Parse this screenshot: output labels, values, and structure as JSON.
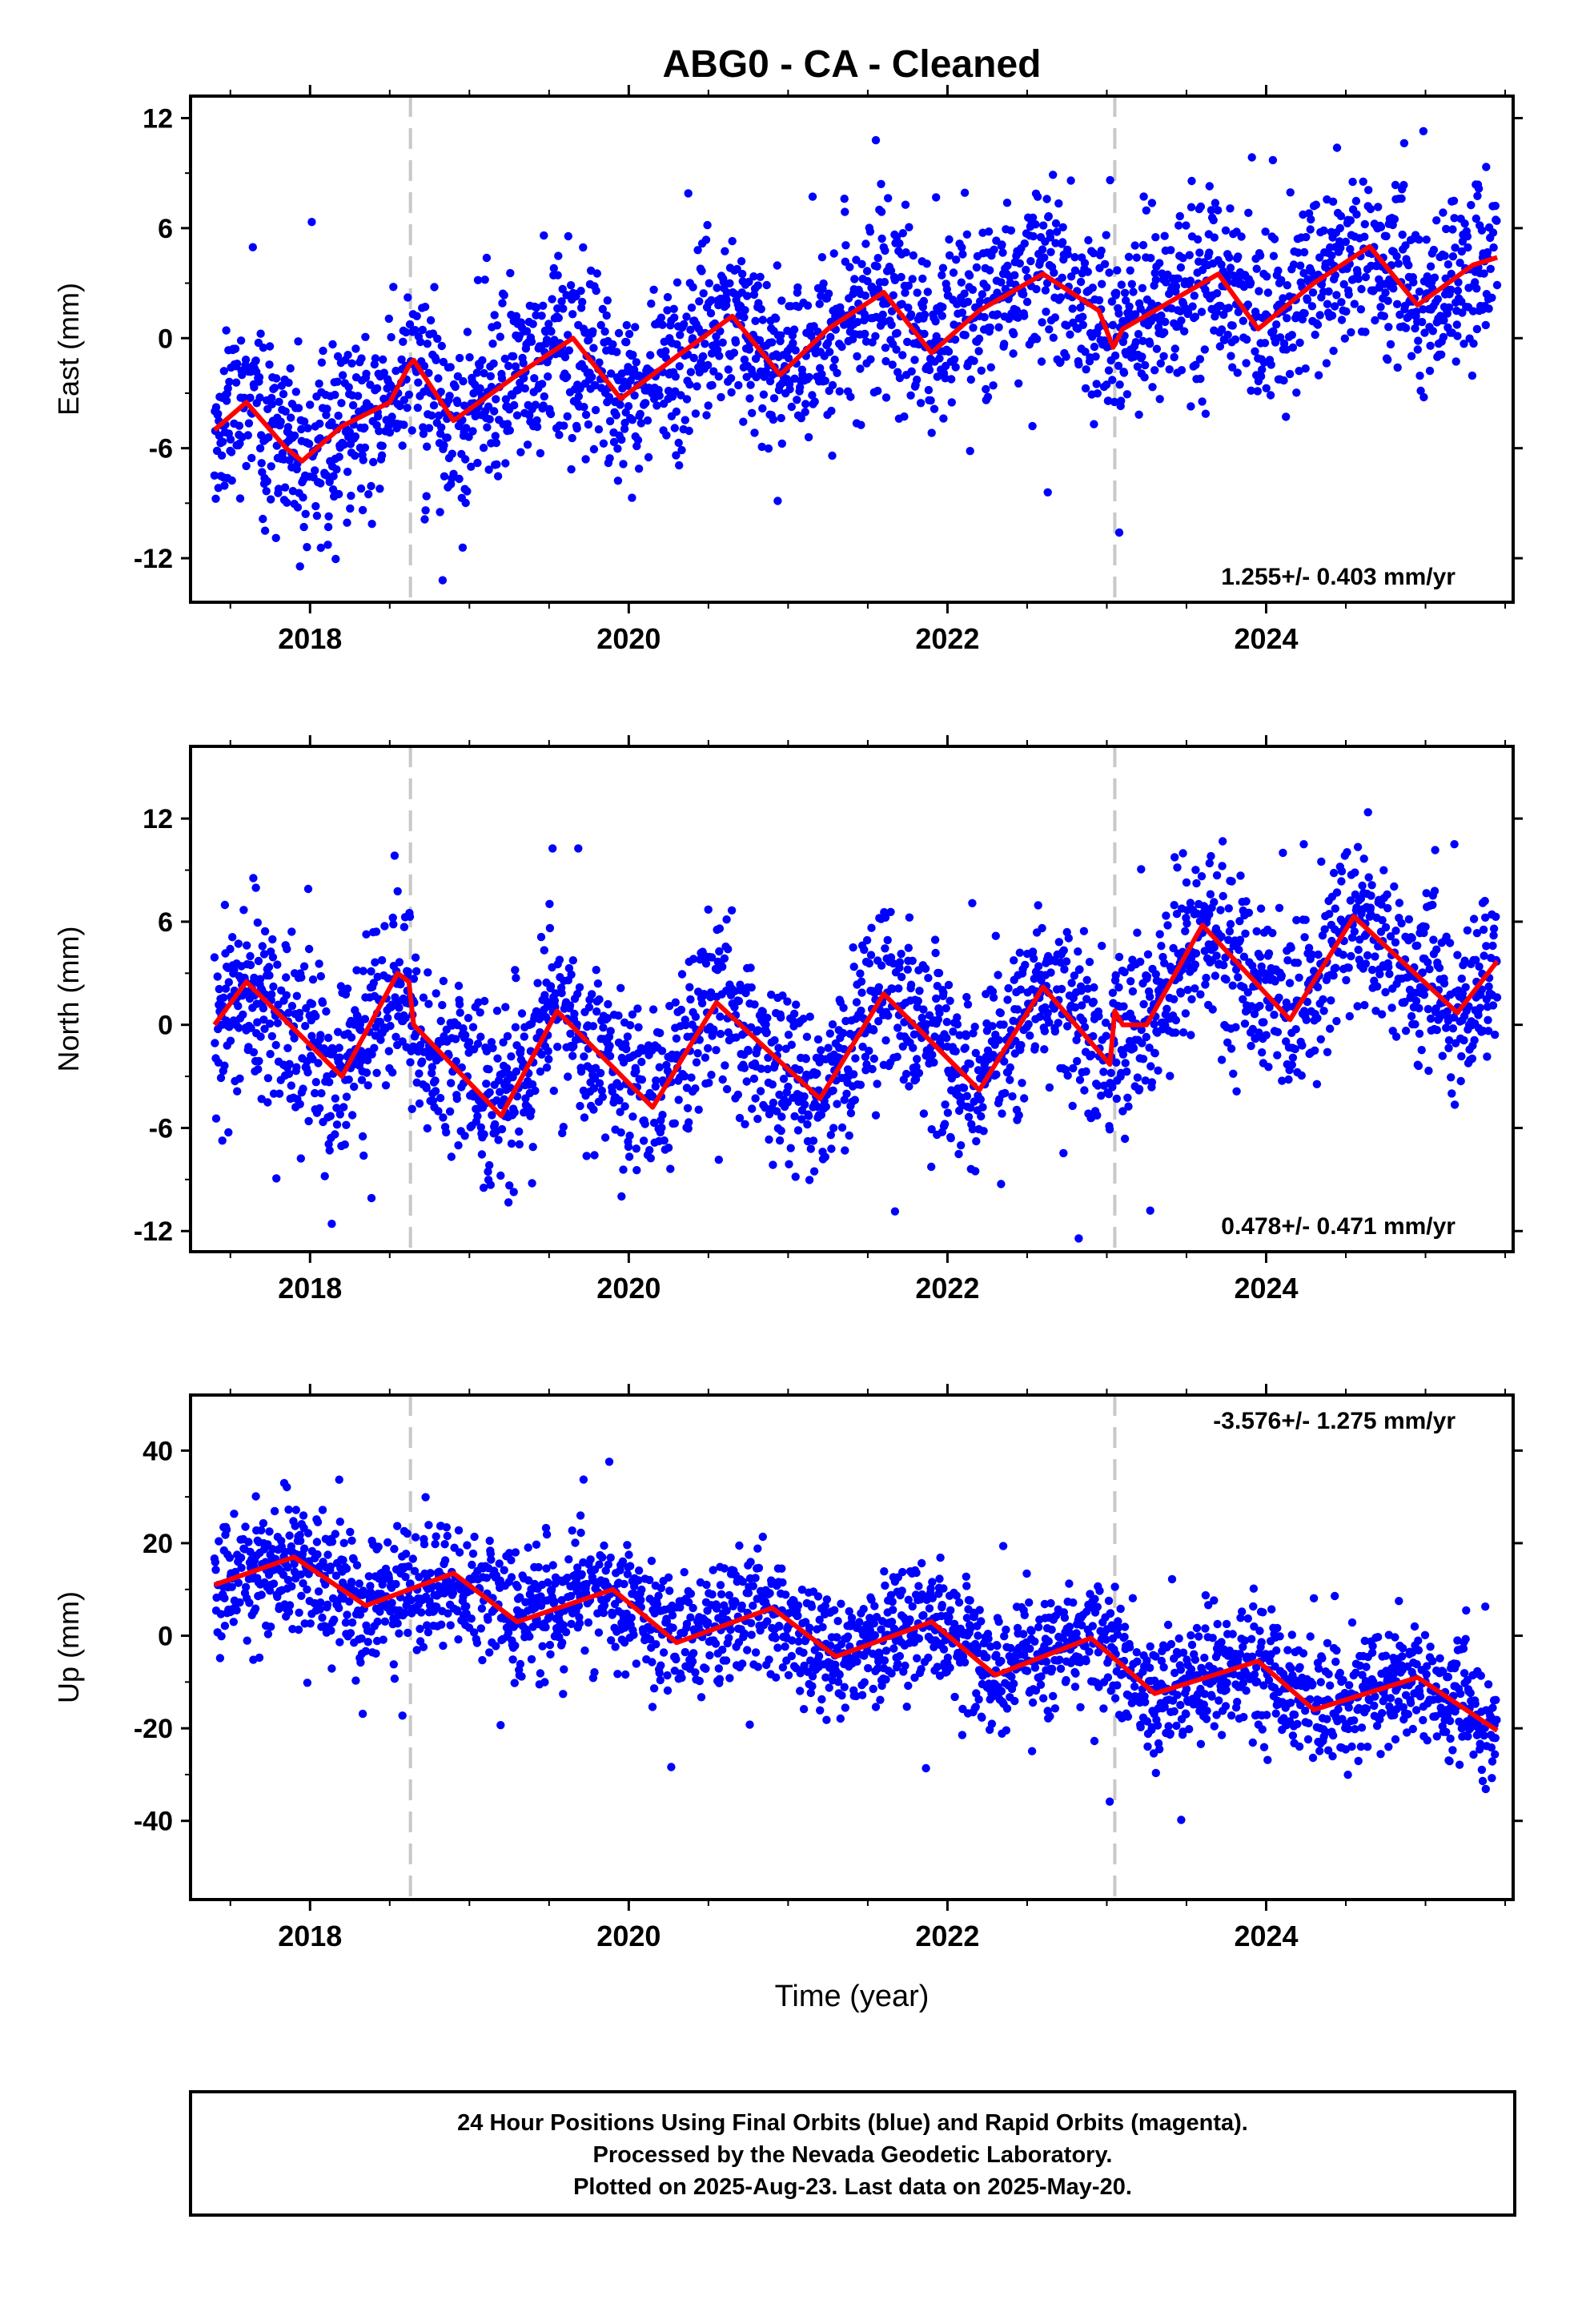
{
  "title": "ABG0  - CA - Cleaned",
  "colors": {
    "final_orbits": "#0000ff",
    "model_fit": "#ff0000",
    "offset_lines": "#c8c8c8",
    "frame": "#000000"
  },
  "x_axis": {
    "label": "Time (year)",
    "ticks": [
      "2018",
      "2020",
      "2022",
      "2024"
    ]
  },
  "footer": {
    "line1": "24 Hour Positions Using Final Orbits (blue) and Rapid Orbits (magenta).",
    "line2": "Processed by the Nevada Geodetic Laboratory.",
    "line3": "Plotted on 2025-Aug-23. Last data on 2025-May-20."
  },
  "chart_data": [
    {
      "type": "scatter",
      "component": "East",
      "ylabel": "East (mm)",
      "yticks": [
        "12",
        "6",
        "0",
        "-6",
        "-12"
      ],
      "ylim": [
        -14.4,
        13.2
      ],
      "xlim": [
        2017.25,
        2025.55
      ],
      "rate_label": "1.255+/- 0.403 mm/yr",
      "rate_position": "bottom-right",
      "offset_epochs": [
        2018.63,
        2023.05
      ],
      "trend_fit": {
        "slope": 1.255,
        "intercept_at_2017_4": -5.0
      },
      "seasonal_fit": {
        "x": [
          2017.4,
          2017.6,
          2017.85,
          2017.95,
          2018.2,
          2018.5,
          2018.62,
          2018.65,
          2018.9,
          2019.3,
          2019.65,
          2019.95,
          2020.3,
          2020.65,
          2020.95,
          2021.25,
          2021.6,
          2021.9,
          2022.2,
          2022.6,
          2022.95,
          2023.04,
          2023.1,
          2023.5,
          2023.7,
          2023.95,
          2024.3,
          2024.65,
          2024.95,
          2025.3,
          2025.45
        ],
        "y": [
          -5.0,
          -3.5,
          -6.0,
          -6.7,
          -4.8,
          -3.5,
          -1.5,
          -1.2,
          -4.5,
          -2.0,
          0.0,
          -3.3,
          -1.0,
          1.2,
          -2.0,
          0.5,
          2.5,
          -0.8,
          1.5,
          3.5,
          1.5,
          -0.5,
          0.5,
          2.5,
          3.5,
          0.5,
          3.0,
          5.0,
          1.8,
          4.0,
          4.4
        ]
      },
      "scatter_sigma_mm": 2.4
    },
    {
      "type": "scatter",
      "component": "North",
      "ylabel": "North (mm)",
      "yticks": [
        "12",
        "6",
        "0",
        "-6",
        "-12"
      ],
      "ylim": [
        -13.2,
        16.2
      ],
      "xlim": [
        2017.25,
        2025.55
      ],
      "rate_label": "0.478+/- 0.471 mm/yr",
      "rate_position": "bottom-right",
      "offset_epochs": [
        2018.63,
        2023.05
      ],
      "trend_fit": {
        "slope": 0.478,
        "intercept_at_2017_4": 0.0
      },
      "seasonal_fit": {
        "x": [
          2017.4,
          2017.6,
          2018.2,
          2018.55,
          2018.62,
          2018.65,
          2019.2,
          2019.55,
          2020.15,
          2020.55,
          2021.2,
          2021.6,
          2022.2,
          2022.6,
          2023.02,
          2023.05,
          2023.1,
          2023.25,
          2023.6,
          2024.15,
          2024.55,
          2025.2,
          2025.45
        ],
        "y": [
          0.0,
          2.5,
          -3.0,
          3.0,
          2.5,
          0.0,
          -5.3,
          0.8,
          -4.8,
          1.3,
          -4.3,
          1.8,
          -3.8,
          2.2,
          -2.3,
          0.8,
          0.0,
          0.0,
          5.8,
          0.3,
          6.3,
          0.7,
          3.7
        ]
      },
      "scatter_sigma_mm": 2.5
    },
    {
      "type": "scatter",
      "component": "Up",
      "ylabel": "Up (mm)",
      "yticks": [
        "40",
        "20",
        "0",
        "-20",
        "-40"
      ],
      "ylim": [
        -57,
        52
      ],
      "xlim": [
        2017.25,
        2025.55
      ],
      "rate_label": "-3.576+/- 1.275 mm/yr",
      "rate_position": "top-right",
      "offset_epochs": [
        2018.63,
        2023.05
      ],
      "trend_fit": {
        "slope": -3.576,
        "intercept_at_2017_4": 11.0
      },
      "seasonal_fit": {
        "x": [
          2017.4,
          2017.9,
          2018.35,
          2018.9,
          2019.3,
          2019.9,
          2020.3,
          2020.9,
          2021.3,
          2021.9,
          2022.3,
          2022.9,
          2023.3,
          2023.95,
          2024.3,
          2024.95,
          2025.45
        ],
        "y": [
          11.0,
          17.0,
          6.5,
          13.5,
          3.0,
          10.0,
          -1.5,
          6.0,
          -4.5,
          3.0,
          -8.5,
          -0.5,
          -12.5,
          -5.5,
          -16.0,
          -9.0,
          -20.5
        ]
      },
      "scatter_sigma_mm": 6.5
    }
  ]
}
